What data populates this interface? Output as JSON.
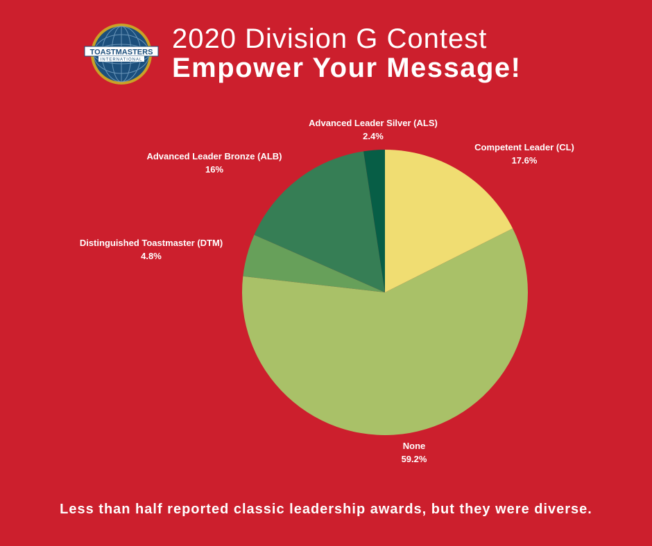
{
  "header": {
    "logo_text": "TOASTMASTERS",
    "logo_subtext": "INTERNATIONAL",
    "title_line1": "2020 Division G Contest",
    "title_line2": "Empower Your Message!"
  },
  "chart_data": {
    "type": "pie",
    "slices": [
      {
        "label": "Competent Leader (CL)",
        "value": 17.6,
        "value_label": "17.6%",
        "color": "#f0dd72"
      },
      {
        "label": "None",
        "value": 59.2,
        "value_label": "59.2%",
        "color": "#a9c168"
      },
      {
        "label": "Distinguished Toastmaster (DTM)",
        "value": 4.8,
        "value_label": "4.8%",
        "color": "#67a05a"
      },
      {
        "label": "Advanced Leader Bronze (ALB)",
        "value": 16,
        "value_label": "16%",
        "color": "#367e55"
      },
      {
        "label": "Advanced Leader Silver (ALS)",
        "value": 2.4,
        "value_label": "2.4%",
        "color": "#075e46"
      }
    ],
    "start_angle": "12 o'clock, clockwise"
  },
  "footer": {
    "caption": "Less than half reported classic leadership awards, but they were diverse."
  },
  "colors": {
    "background": "#cc1f2d",
    "text": "#ffffff",
    "logo_blue": "#1c4f7c",
    "logo_gold": "#c9a227"
  }
}
